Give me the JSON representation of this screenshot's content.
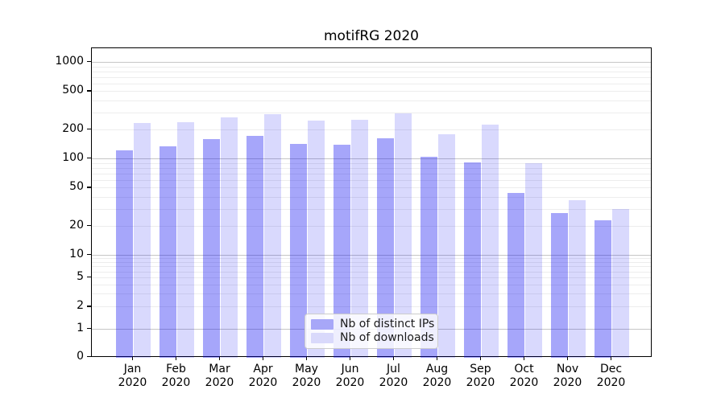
{
  "chart_data": {
    "type": "bar",
    "title": "motifRG 2020",
    "categories": [
      "Jan",
      "Feb",
      "Mar",
      "Apr",
      "May",
      "Jun",
      "Jul",
      "Aug",
      "Sep",
      "Oct",
      "Nov",
      "Dec"
    ],
    "category_year": "2020",
    "series": [
      {
        "name": "Nb of distinct IPs",
        "color": "rgba(0,0,240,0.35)",
        "solid_color": "#a7a7f8",
        "values": [
          122,
          135,
          160,
          172,
          142,
          140,
          163,
          105,
          92,
          44,
          27,
          23
        ]
      },
      {
        "name": "Nb of downloads",
        "color": "rgba(0,0,240,0.15)",
        "solid_color": "#d9d9fb",
        "values": [
          235,
          240,
          265,
          286,
          249,
          252,
          294,
          180,
          225,
          90,
          37,
          30
        ]
      }
    ],
    "yscale": "symlog",
    "yticks": [
      0,
      1,
      2,
      5,
      10,
      20,
      50,
      100,
      200,
      500,
      1000
    ],
    "ylim": [
      0,
      1400
    ],
    "xlabel": "",
    "ylabel": "",
    "grid": true,
    "legend_position": "lower center",
    "colors": {
      "major_grid": "#c6c6c6",
      "minor_grid": "#ededed",
      "axis": "#000000",
      "background": "#ffffff",
      "text": "#000000"
    }
  }
}
